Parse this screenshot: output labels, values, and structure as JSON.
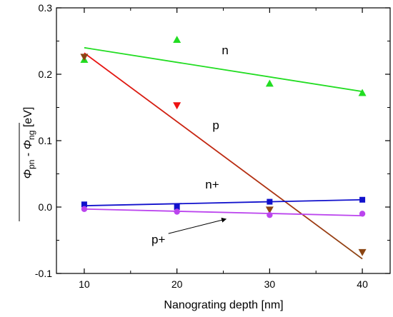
{
  "chart_data": {
    "type": "scatter",
    "title": "",
    "xlabel": "Nanograting depth [nm]",
    "ylabel": {
      "symbol_1": "Φ",
      "sub_1": "pn",
      "separator": " - ",
      "symbol_2": "Φ",
      "sub_2": "ng",
      "unit": "  [eV]"
    },
    "xlim": [
      7,
      43
    ],
    "ylim": [
      -0.1,
      0.3
    ],
    "xticks": [
      10,
      20,
      30,
      40
    ],
    "yticks": [
      -0.1,
      0.0,
      0.1,
      0.2,
      0.3
    ],
    "ytick_labels": [
      "-0.1",
      "0.0",
      "0.1",
      "0.2",
      "0.3"
    ],
    "grid": false,
    "series": [
      {
        "name": "n",
        "marker": "triangle-up",
        "color": "#22dd22",
        "x": [
          10,
          20,
          30,
          40
        ],
        "y": [
          0.222,
          0.252,
          0.186,
          0.172
        ],
        "fit": [
          [
            10,
            0.24
          ],
          [
            40,
            0.174
          ]
        ]
      },
      {
        "name": "p",
        "marker": "triangle-down",
        "color": "#ee1111",
        "x": [
          10,
          20,
          30,
          40
        ],
        "y": [
          0.226,
          0.153,
          -0.004,
          -0.068
        ],
        "marker_colors": [
          "#8b4513",
          "#ee1111",
          "#8b4513",
          "#8b4513"
        ],
        "fit": [
          [
            10,
            0.232
          ],
          [
            40,
            -0.078
          ]
        ],
        "fit_gradient": [
          "#ee1111",
          "#8b4513"
        ]
      },
      {
        "name": "n+",
        "marker": "square",
        "color": "#1111cc",
        "x": [
          10,
          20,
          30,
          40
        ],
        "y": [
          0.004,
          0.0,
          0.008,
          0.011
        ],
        "fit": [
          [
            10,
            0.002
          ],
          [
            40,
            0.011
          ]
        ]
      },
      {
        "name": "p+",
        "marker": "circle",
        "color": "#bb44ee",
        "x": [
          10,
          20,
          30,
          40
        ],
        "y": [
          -0.003,
          -0.007,
          -0.012,
          -0.01
        ],
        "fit": [
          [
            10,
            -0.003
          ],
          [
            40,
            -0.013
          ]
        ]
      }
    ],
    "annotations": [
      {
        "text": "n",
        "series": "n",
        "at": [
          25.2,
          0.23
        ]
      },
      {
        "text": "p",
        "series": "p",
        "at": [
          24.2,
          0.117
        ]
      },
      {
        "text": "n+",
        "series": "n+",
        "at": [
          23.8,
          0.028
        ]
      },
      {
        "text": "p+",
        "series": "p+",
        "at": [
          18.0,
          -0.055
        ],
        "arrow_to": [
          25.3,
          -0.018
        ]
      }
    ]
  }
}
